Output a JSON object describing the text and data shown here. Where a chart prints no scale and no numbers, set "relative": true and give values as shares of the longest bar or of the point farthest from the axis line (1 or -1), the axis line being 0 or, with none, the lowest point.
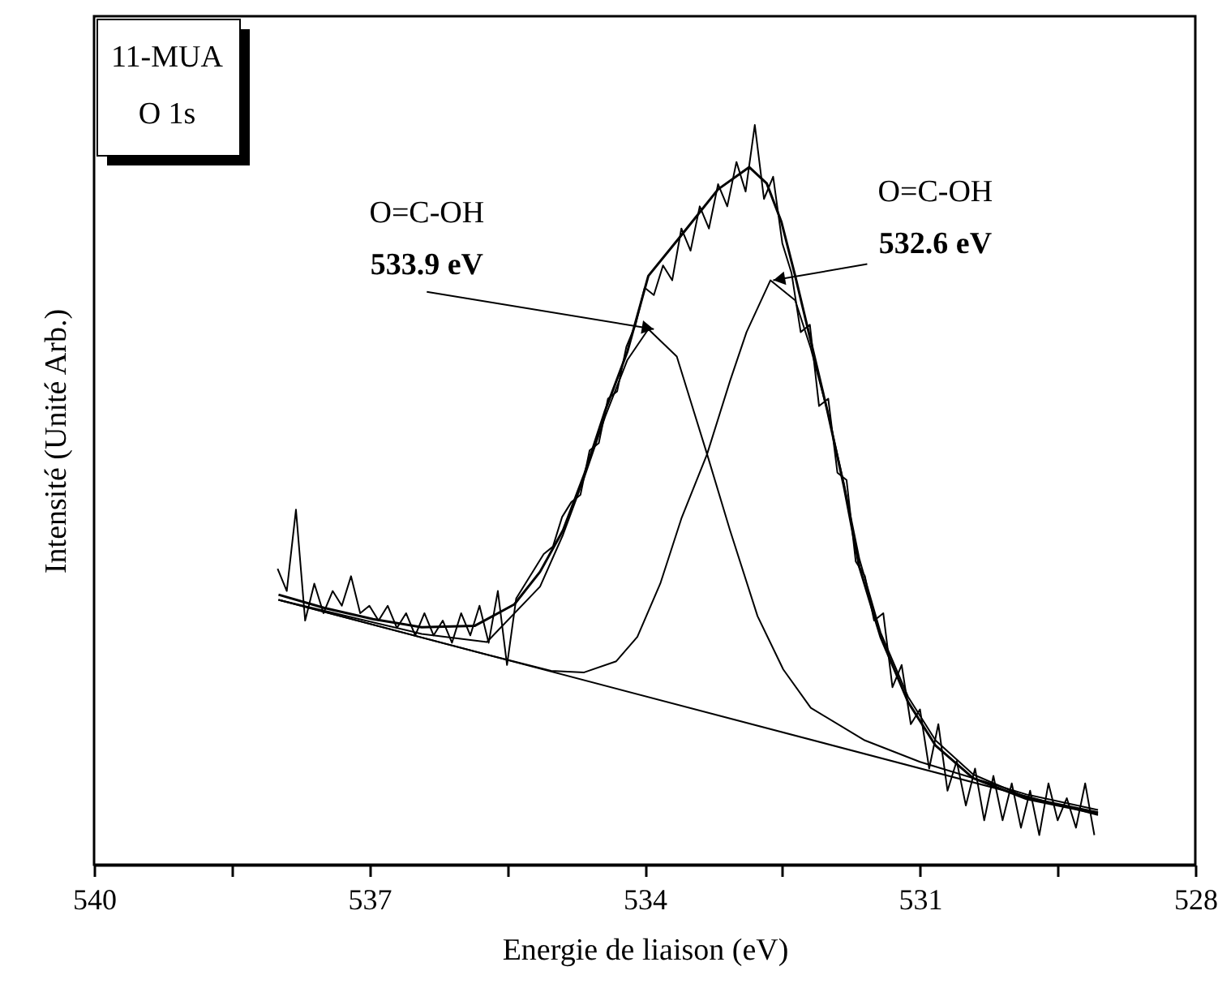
{
  "chart_data": {
    "type": "line",
    "xlabel": "Energie de liaison (eV)",
    "ylabel": "Intensité (Unité Arb.)",
    "relative": true,
    "xlim": [
      540,
      528
    ],
    "xticks": [
      540,
      {
        "value": 538.5,
        "label": null
      },
      537,
      {
        "value": 535.5,
        "label": null
      },
      534,
      {
        "value": 532.5,
        "label": null
      },
      531,
      {
        "value": 529.5,
        "label": null
      },
      528
    ],
    "annotations": [
      "11-MUA\nO 1s",
      {
        "text": "O=C-OH\n533.9 eV",
        "x": 533.9,
        "y": 0.724
      },
      {
        "text": "O=C-OH\n532.6 eV",
        "x": 532.6,
        "y": 0.79
      }
    ],
    "series": [
      {
        "type": "line",
        "color": "#000000",
        "x": [
          538.0,
          537.9,
          537.8,
          537.7,
          537.6,
          537.5,
          537.4,
          537.3,
          537.2,
          537.1,
          537.0,
          536.9,
          536.8,
          536.7,
          536.6,
          536.5,
          536.4,
          536.3,
          536.2,
          536.1,
          536.0,
          535.9,
          535.8,
          535.7,
          535.6,
          535.5,
          535.4,
          535.3,
          535.2,
          535.1,
          535.0,
          534.9,
          534.8,
          534.7,
          534.6,
          534.5,
          534.4,
          534.3,
          534.2,
          534.1,
          534.0,
          533.9,
          533.8,
          533.7,
          533.6,
          533.5,
          533.4,
          533.3,
          533.2,
          533.1,
          533.0,
          532.9,
          532.8,
          532.7,
          532.6,
          532.5,
          532.4,
          532.3,
          532.2,
          532.1,
          532.0,
          531.9,
          531.8,
          531.7,
          531.6,
          531.5,
          531.4,
          531.3,
          531.2,
          531.1,
          531.0,
          530.9,
          530.8,
          530.7,
          530.6,
          530.5,
          530.4,
          530.3,
          530.2,
          530.1,
          530.0,
          529.9,
          529.8,
          529.7,
          529.6,
          529.5,
          529.4,
          529.3,
          529.2,
          529.1
        ],
        "values": [
          0.4,
          0.37,
          0.48,
          0.33,
          0.38,
          0.34,
          0.37,
          0.35,
          0.39,
          0.34,
          0.35,
          0.33,
          0.35,
          0.32,
          0.34,
          0.31,
          0.34,
          0.31,
          0.33,
          0.3,
          0.34,
          0.31,
          0.35,
          0.3,
          0.37,
          0.27,
          0.36,
          0.38,
          0.4,
          0.42,
          0.43,
          0.47,
          0.49,
          0.5,
          0.56,
          0.57,
          0.63,
          0.64,
          0.7,
          0.73,
          0.78,
          0.77,
          0.81,
          0.79,
          0.86,
          0.83,
          0.89,
          0.86,
          0.92,
          0.89,
          0.95,
          0.91,
          1.0,
          0.9,
          0.93,
          0.84,
          0.8,
          0.72,
          0.73,
          0.62,
          0.63,
          0.53,
          0.52,
          0.41,
          0.39,
          0.33,
          0.34,
          0.24,
          0.27,
          0.19,
          0.21,
          0.13,
          0.19,
          0.1,
          0.14,
          0.08,
          0.13,
          0.06,
          0.12,
          0.06,
          0.11,
          0.05,
          0.1,
          0.04,
          0.11,
          0.06,
          0.09,
          0.05,
          0.11,
          0.04
        ]
      },
      {
        "type": "line",
        "color": "#000000",
        "x": [
          537.99,
          537.49,
          536.96,
          536.43,
          535.85,
          535.42,
          535.14,
          534.89,
          534.66,
          534.43,
          534.19,
          533.96,
          533.6,
          533.2,
          532.86,
          532.67,
          532.51,
          532.36,
          532.19,
          532.01,
          531.83,
          531.66,
          531.43,
          531.13,
          530.83,
          530.42,
          529.84,
          529.06
        ],
        "values": [
          0.365,
          0.347,
          0.332,
          0.321,
          0.323,
          0.352,
          0.396,
          0.452,
          0.527,
          0.614,
          0.693,
          0.796,
          0.851,
          0.913,
          0.943,
          0.921,
          0.869,
          0.796,
          0.708,
          0.614,
          0.512,
          0.402,
          0.308,
          0.22,
          0.161,
          0.117,
          0.089,
          0.069
        ]
      },
      {
        "type": "line",
        "color": "#000000",
        "x": [
          537.99,
          536.43,
          535.72,
          535.14,
          534.89,
          534.66,
          534.43,
          534.19,
          533.96,
          533.65,
          533.32,
          533.07,
          532.77,
          532.49,
          532.19,
          531.6,
          531.0,
          530.42,
          529.84,
          529.06
        ],
        "values": [
          0.358,
          0.312,
          0.301,
          0.376,
          0.446,
          0.523,
          0.606,
          0.682,
          0.724,
          0.687,
          0.555,
          0.452,
          0.336,
          0.264,
          0.212,
          0.168,
          0.139,
          0.117,
          0.095,
          0.074
        ]
      },
      {
        "type": "line",
        "color": "#000000",
        "x": [
          537.99,
          535.72,
          535.02,
          534.66,
          534.31,
          534.08,
          533.83,
          533.6,
          533.32,
          533.07,
          532.89,
          532.63,
          532.36,
          532.19,
          532.01,
          531.83,
          531.66,
          531.43,
          531.13,
          530.83,
          530.42,
          529.84,
          529.06
        ],
        "values": [
          0.358,
          0.284,
          0.262,
          0.26,
          0.275,
          0.308,
          0.38,
          0.468,
          0.555,
          0.654,
          0.72,
          0.79,
          0.763,
          0.698,
          0.614,
          0.516,
          0.413,
          0.314,
          0.227,
          0.168,
          0.122,
          0.091,
          0.071
        ]
      },
      {
        "type": "line",
        "color": "#000000",
        "x": [
          537.99,
          529.06
        ],
        "values": [
          0.358,
          0.067
        ]
      }
    ]
  }
}
